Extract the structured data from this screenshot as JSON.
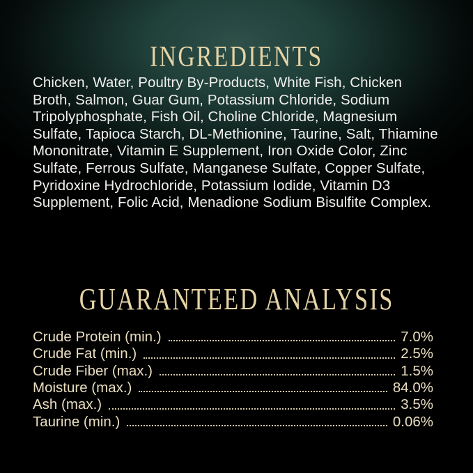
{
  "colors": {
    "background": "#000000",
    "glow_teal": "#2e5049",
    "heading_gold": "#e6d4a6",
    "ingredients_text": "#f1f0ed",
    "analysis_text": "#e9ddc1",
    "dots": "#d6c9a9"
  },
  "ingredients": {
    "title": "INGREDIENTS",
    "lines": [
      "Chicken, Water, Poultry By-Products, White Fish, Chicken",
      "Broth, Salmon, Guar Gum, Potassium Chloride, Sodium",
      "Tripolyphosphate, Fish Oil, Choline Chloride, Magnesium",
      "Sulfate, Tapioca Starch, DL-Methionine, Taurine, Salt, Thiamine",
      "Mononitrate, Vitamin E Supplement, Iron Oxide Color, Zinc",
      "Sulfate, Ferrous Sulfate, Manganese Sulfate, Copper Sulfate,",
      "Pyridoxine Hydrochloride, Potassium Iodide, Vitamin D3",
      "Supplement, Folic Acid, Menadione Sodium Bisulfite Complex."
    ]
  },
  "guaranteed_analysis": {
    "title": "GUARANTEED ANALYSIS",
    "rows": [
      {
        "label": "Crude Protein (min.)",
        "value": "7.0%"
      },
      {
        "label": "Crude Fat (min.)",
        "value": "2.5%"
      },
      {
        "label": "Crude Fiber (max.)",
        "value": "1.5%"
      },
      {
        "label": "Moisture (max.)",
        "value": "84.0%"
      },
      {
        "label": "Ash (max.)",
        "value": "3.5%"
      },
      {
        "label": "Taurine (min.)",
        "value": "0.06%"
      }
    ]
  }
}
